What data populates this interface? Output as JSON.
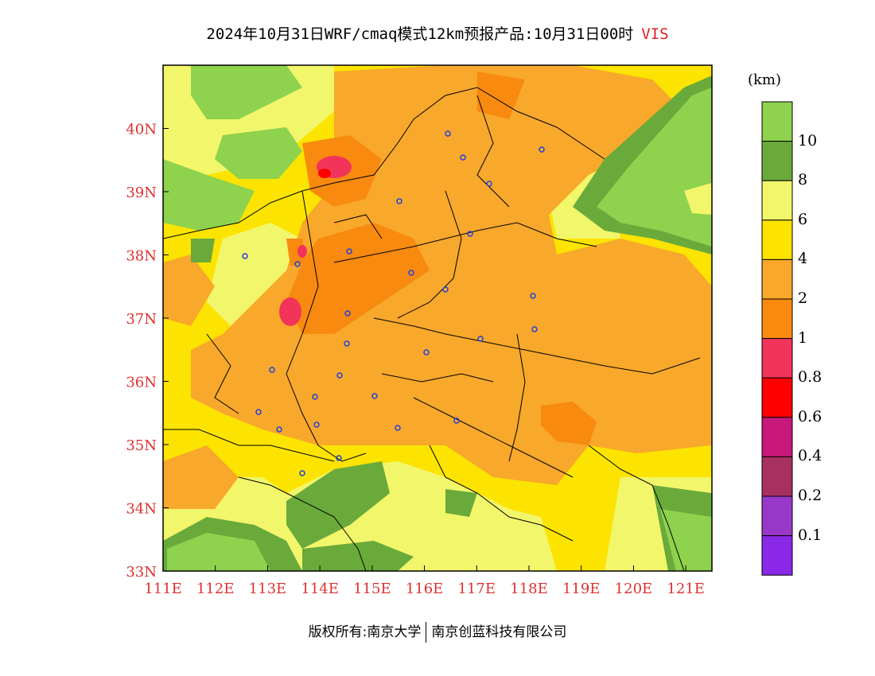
{
  "title": {
    "main": "2024年10月31日WRF/cmaq模式12km预报产品:10月31日00时",
    "variable": "VIS"
  },
  "colors": {
    "axis_labels": "#e03030",
    "title_variable": "#e02020",
    "city_markers": "#2040e0",
    "boundaries": "#000000"
  },
  "map": {
    "lon_range": [
      111,
      121.5
    ],
    "lat_range": [
      33,
      41
    ],
    "lon_ticks": [
      "111E",
      "112E",
      "113E",
      "114E",
      "115E",
      "116E",
      "117E",
      "118E",
      "119E",
      "120E",
      "121E"
    ],
    "lat_ticks": [
      "33N",
      "34N",
      "35N",
      "36N",
      "37N",
      "38N",
      "39N",
      "40N"
    ]
  },
  "colorbar": {
    "unit": "(km)",
    "labels": [
      "10",
      "8",
      "6",
      "4",
      "2",
      "1",
      "0.8",
      "0.6",
      "0.4",
      "0.2",
      "0.1"
    ],
    "colors": [
      "#8ed24e",
      "#6aaa3a",
      "#f2f66a",
      "#fce400",
      "#f8a82a",
      "#f88a10",
      "#f2345a",
      "#ff0000",
      "#c8187a",
      "#a83060",
      "#9838c8",
      "#8a28e8"
    ]
  },
  "footer": {
    "left": "版权所有:南京大学",
    "right": "南京创蓝科技有限公司"
  }
}
